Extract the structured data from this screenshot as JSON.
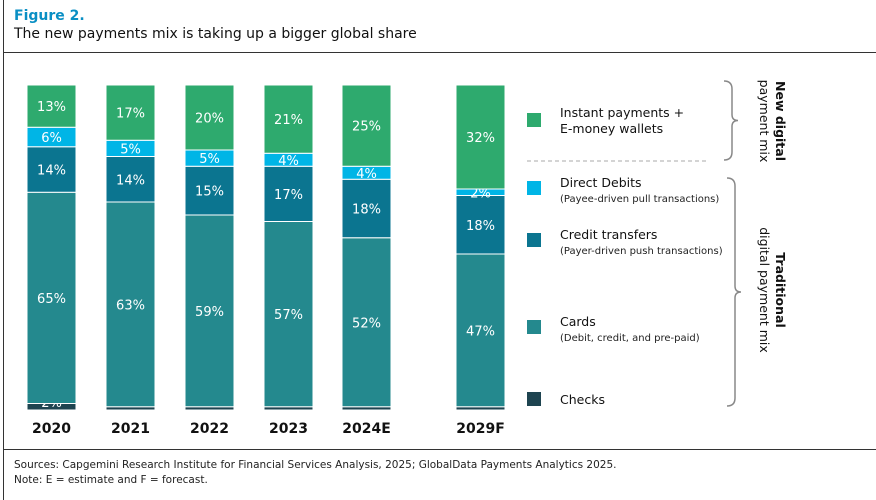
{
  "figure_label": "Figure 2.",
  "chart_data": {
    "type": "bar",
    "stacked": true,
    "title": "The new payments mix is taking up a bigger global share",
    "categories": [
      "2020",
      "2021",
      "2022",
      "2023",
      "2024E",
      "2029F"
    ],
    "ylim": [
      0,
      100
    ],
    "grid": false,
    "legend_placement": "right",
    "series": [
      {
        "name": "Checks",
        "color": "#1e4450",
        "values": [
          2,
          1,
          1,
          1,
          1,
          1
        ]
      },
      {
        "name": "Cards",
        "color": "#24898e",
        "values": [
          65,
          63,
          59,
          57,
          52,
          47
        ]
      },
      {
        "name": "Credit transfers",
        "color": "#0b7590",
        "values": [
          14,
          14,
          15,
          17,
          18,
          18
        ]
      },
      {
        "name": "Direct Debits",
        "color": "#00b5e6",
        "values": [
          6,
          5,
          5,
          4,
          4,
          2
        ]
      },
      {
        "name": "Instant payments + E-money wallets",
        "color": "#2eaa6e",
        "values": [
          13,
          17,
          20,
          21,
          25,
          32
        ]
      }
    ]
  },
  "legend": [
    {
      "line1": "Instant payments +",
      "line2": "E-money wallets",
      "color": "#2eaa6e"
    },
    {
      "line1": "Direct Debits",
      "sub": "(Payee-driven pull transactions)",
      "color": "#00b5e6"
    },
    {
      "line1": "Credit transfers",
      "sub": "(Payer-driven push transactions)",
      "color": "#0b7590"
    },
    {
      "line1": "Cards",
      "sub": "(Debit, credit, and pre-paid)",
      "color": "#24898e"
    },
    {
      "line1": "Checks",
      "color": "#1e4450"
    }
  ],
  "groups": {
    "new": [
      "New digital",
      "payment mix"
    ],
    "traditional": [
      "Traditional",
      "digital payment mix"
    ]
  },
  "sources": "Sources: Capgemini Research Institute for Financial Services Analysis, 2025; GlobalData Payments Analytics 2025.",
  "note": "Note: E = estimate and F = forecast."
}
